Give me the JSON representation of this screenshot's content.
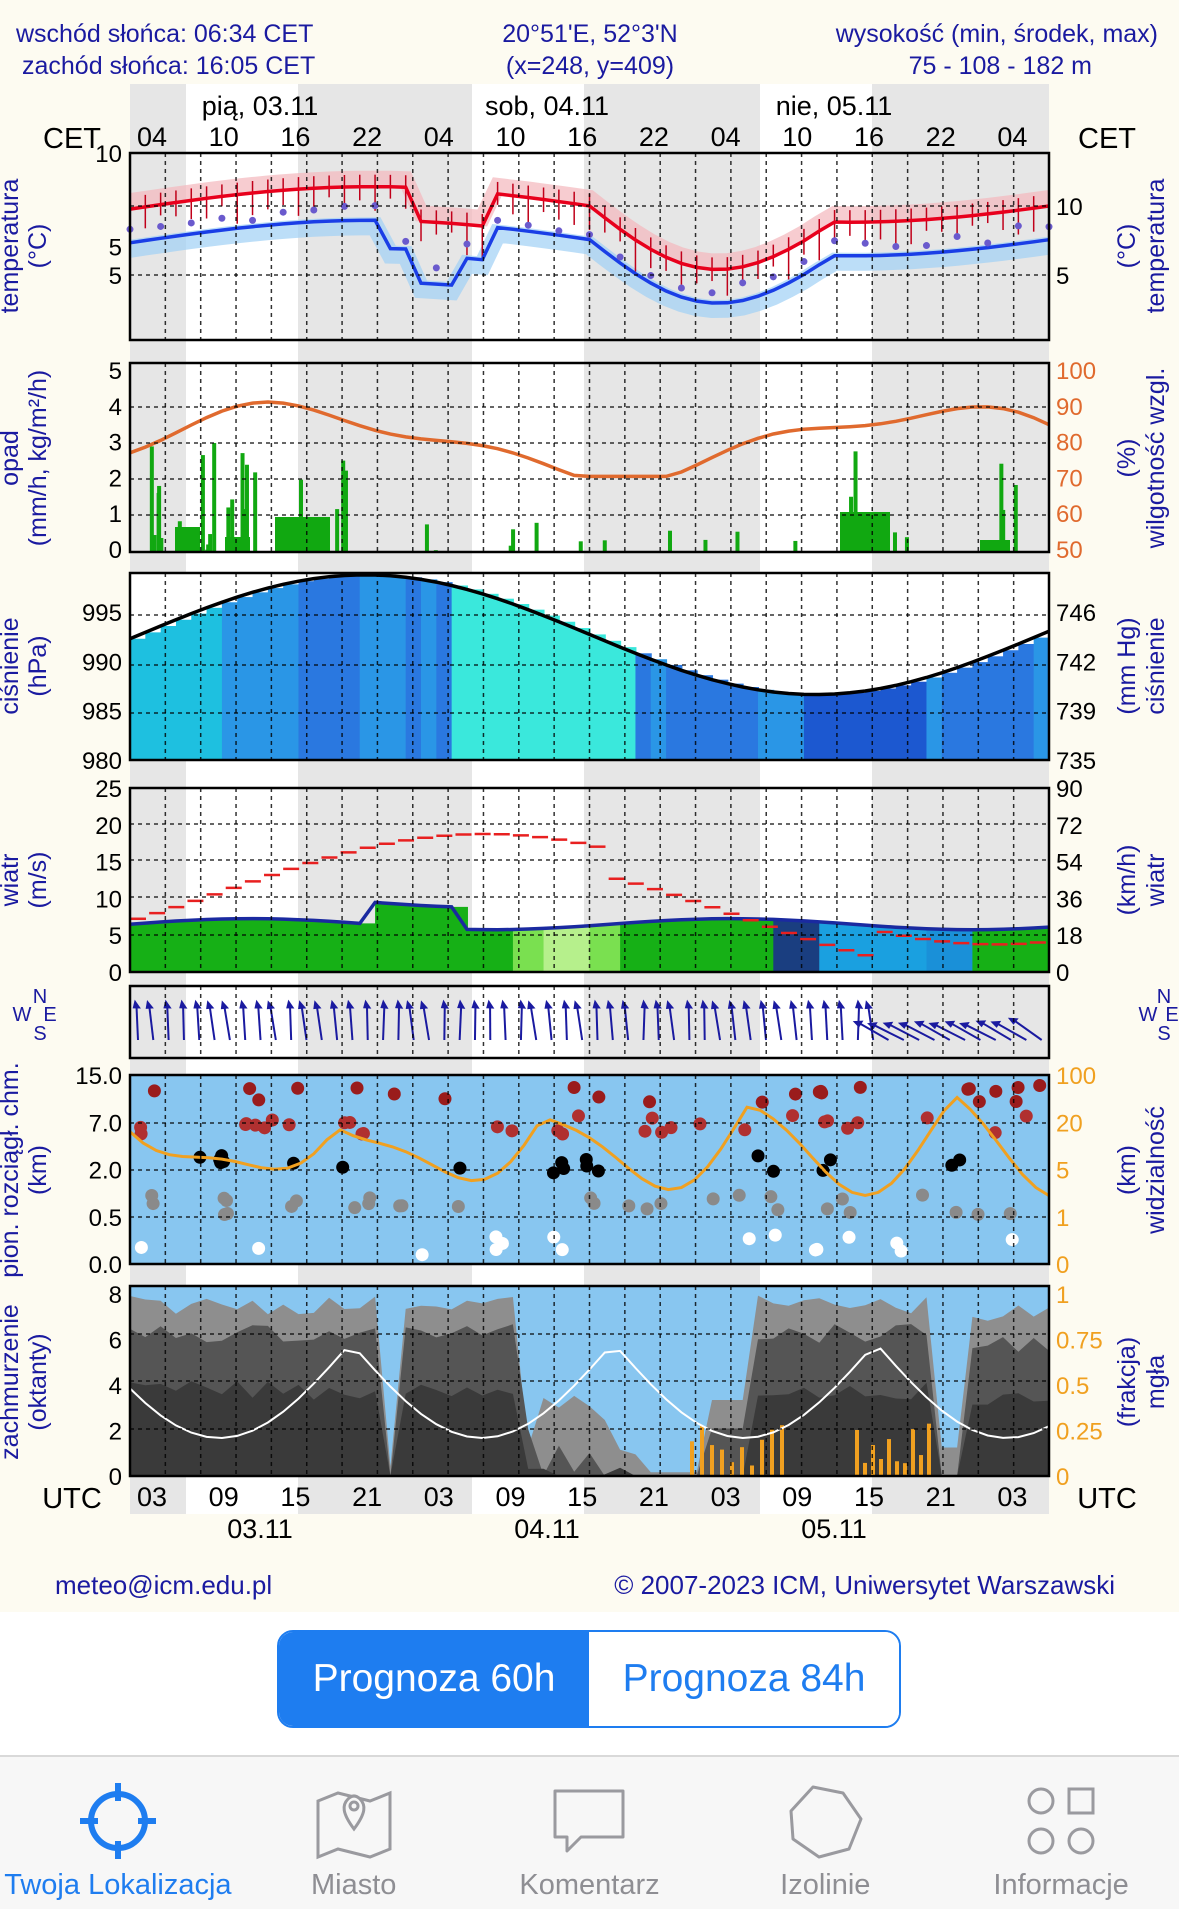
{
  "header": {
    "sunrise": "wschód słońca: 06:34 CET",
    "sunset": "zachód słońca: 16:05 CET",
    "coords": "20°51'E, 52°3'N",
    "grid": "(x=248,  y=409)",
    "elevation_label": "wysokość (min, środek, max)",
    "elevation_value": "75 - 108 - 182 m"
  },
  "top_axis": {
    "tz_left": "CET",
    "tz_right": "CET",
    "days": [
      "pią, 03.11",
      "sob, 04.11",
      "nie, 05.11"
    ],
    "hours": [
      "04",
      "10",
      "16",
      "22",
      "04",
      "10",
      "16",
      "22",
      "04",
      "10",
      "16",
      "22",
      "04"
    ]
  },
  "bottom_axis": {
    "tz_left": "UTC",
    "tz_right": "UTC",
    "hours": [
      "03",
      "09",
      "15",
      "21",
      "03",
      "09",
      "15",
      "21",
      "03",
      "09",
      "15",
      "21",
      "03"
    ],
    "dates": [
      "03.11",
      "04.11",
      "05.11"
    ]
  },
  "panels": {
    "temperature": {
      "label_left": "temperatura",
      "unit_left": "(°C)",
      "label_right": "temperatura",
      "unit_right": "(°C)",
      "ticks": [
        "5",
        "10"
      ],
      "temp_color": "#e8001c",
      "dew_color": "#1a3ee6"
    },
    "precipitation": {
      "label_left": "opad",
      "unit_left": "(mm/h, kg/m²/h)",
      "label_right": "wilgotność wzgl.",
      "unit_right": "(%)",
      "ticks_left": [
        "0",
        "1",
        "2",
        "3",
        "4",
        "5"
      ],
      "ticks_right": [
        "50",
        "60",
        "70",
        "80",
        "90",
        "100"
      ],
      "humidity_color": "#e06a2e"
    },
    "pressure": {
      "label_left": "ciśnienie",
      "unit_left": "(hPa)",
      "label_right": "ciśnienie",
      "unit_right": "(mm Hg)",
      "ticks_left": [
        "980",
        "985",
        "990",
        "995"
      ],
      "ticks_right": [
        "735",
        "739",
        "742",
        "746"
      ]
    },
    "wind": {
      "label_left": "wiatr",
      "unit_left": "(m/s)",
      "label_right": "wiatr",
      "unit_right": "(km/h)",
      "ticks_left": [
        "0",
        "5",
        "10",
        "15",
        "20",
        "25"
      ],
      "ticks_right": [
        "0",
        "18",
        "36",
        "54",
        "72",
        "90"
      ]
    },
    "wind_direction": {
      "compass_letters": [
        "N",
        "E",
        "S",
        "W"
      ]
    },
    "clouds": {
      "label_left": "pion. rozciągł. chm.",
      "unit_left": "(km)",
      "label_right": "widzialność",
      "unit_right": "(km)",
      "ticks_left": [
        "0.0",
        "0.5",
        "2.0",
        "7.0",
        "15.0"
      ],
      "ticks_right": [
        "0",
        "1",
        "5",
        "20",
        "100"
      ]
    },
    "cloud_cover": {
      "label_left": "zachmurzenie",
      "unit_left": "(oktanty)",
      "label_right": "mgła",
      "unit_right": "(frakcja)",
      "ticks_left": [
        "0",
        "2",
        "4",
        "6",
        "8"
      ],
      "ticks_right": [
        "0",
        "0.25",
        "0.5",
        "0.75",
        "1"
      ]
    }
  },
  "footer": {
    "email": "meteo@icm.edu.pl",
    "copyright": "© 2007-2023 ICM, Uniwersytet Warszawski"
  },
  "segment": {
    "option_60": "Prognoza 60h",
    "option_84": "Prognoza 84h",
    "active": "60h",
    "accent": "#1e7df0"
  },
  "tabbar": {
    "items": [
      {
        "label": "Twoja Lokalizacja",
        "icon": "crosshair-icon",
        "active": true
      },
      {
        "label": "Miasto",
        "icon": "map-pin-icon",
        "active": false
      },
      {
        "label": "Komentarz",
        "icon": "speech-bubble-icon",
        "active": false
      },
      {
        "label": "Izolinie",
        "icon": "isoline-icon",
        "active": false
      },
      {
        "label": "Informacje",
        "icon": "grid-icon",
        "active": false
      }
    ]
  }
}
